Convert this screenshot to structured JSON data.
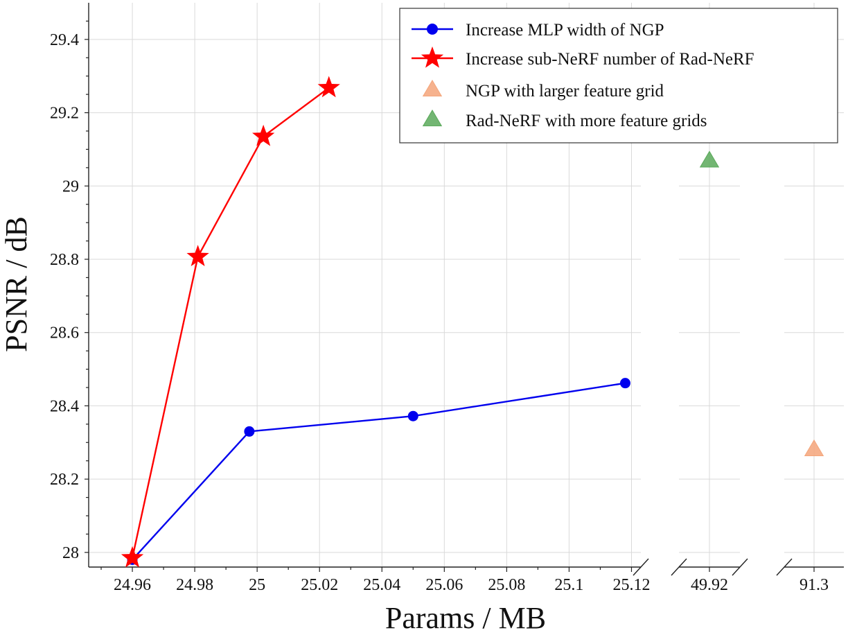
{
  "chart_data": {
    "type": "line",
    "xlabel": "Params / MB",
    "ylabel": "PSNR / dB",
    "ylim": [
      27.96,
      29.5
    ],
    "y_ticks": [
      28,
      28.2,
      28.4,
      28.6,
      28.8,
      29,
      29.2,
      29.4
    ],
    "y_tick_labels": [
      "28",
      "28.2",
      "28.4",
      "28.6",
      "28.8",
      "29",
      "29.2",
      "29.4"
    ],
    "x_segments": [
      {
        "range": [
          24.946,
          25.123
        ],
        "ticks": [
          24.96,
          24.98,
          25,
          25.02,
          25.04,
          25.06,
          25.08,
          25.1,
          25.12
        ],
        "tick_labels": [
          "24.96",
          "24.98",
          "25",
          "25.02",
          "25.04",
          "25.06",
          "25.08",
          "25.1",
          "25.12"
        ]
      },
      {
        "range": [
          49.9,
          49.94
        ],
        "ticks": [
          49.92
        ],
        "tick_labels": [
          "49.92"
        ]
      },
      {
        "range": [
          91.28,
          91.32
        ],
        "ticks": [
          91.3
        ],
        "tick_labels": [
          "91.3"
        ]
      }
    ],
    "grid": true,
    "legend_position": "top-right",
    "series": [
      {
        "name": "Increase MLP width of NGP",
        "color": "#0000ee",
        "marker": "circle",
        "line": true,
        "points": [
          [
            24.96,
            27.98
          ],
          [
            24.9975,
            28.33
          ],
          [
            25.05,
            28.372
          ],
          [
            25.118,
            28.462
          ]
        ]
      },
      {
        "name": "Increase sub-NeRF number of Rad-NeRF",
        "color": "#ff0000",
        "marker": "star",
        "line": true,
        "points": [
          [
            24.96,
            27.985
          ],
          [
            24.981,
            28.807
          ],
          [
            25.002,
            29.135
          ],
          [
            25.023,
            29.268
          ]
        ]
      },
      {
        "name": "NGP with larger feature grid",
        "color": "#f4a57a",
        "marker": "triangle",
        "line": false,
        "points": [
          [
            91.3,
            28.28
          ]
        ]
      },
      {
        "name": "Rad-NeRF with more feature grids",
        "color": "#5aa95a",
        "marker": "triangle",
        "line": false,
        "points": [
          [
            49.92,
            29.068
          ]
        ]
      }
    ]
  }
}
